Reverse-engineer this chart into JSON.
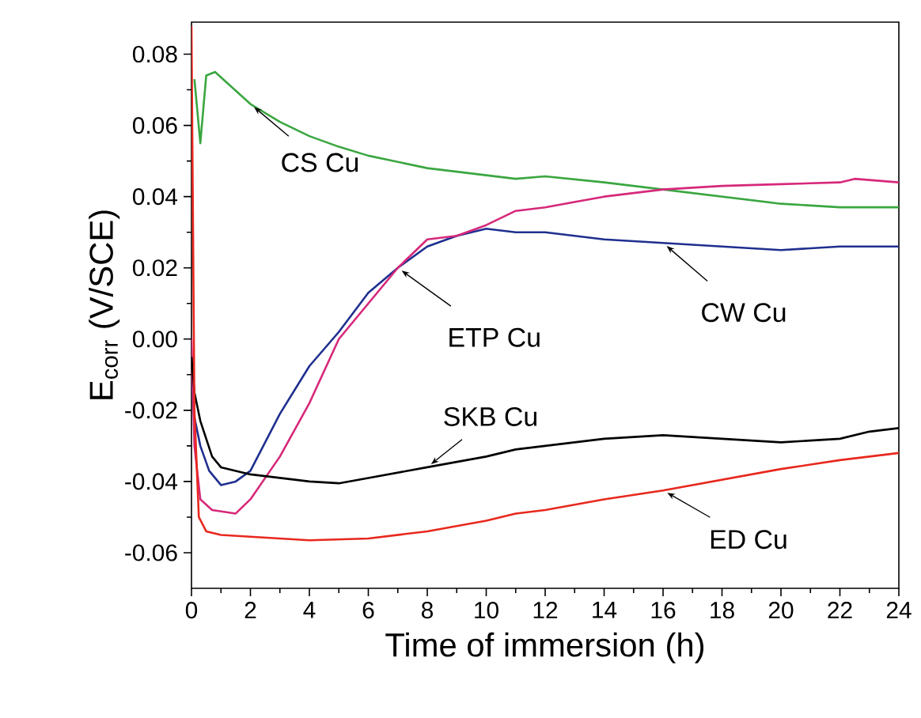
{
  "chart_data": {
    "type": "line",
    "xlabel": "Time of immersion (h)",
    "ylabel": "E$_{corr}$ (V/SCE)",
    "xlim": [
      0,
      24
    ],
    "ylim": [
      -0.07,
      0.089
    ],
    "xticks": [
      0,
      2,
      4,
      6,
      8,
      10,
      12,
      14,
      16,
      18,
      20,
      22,
      24
    ],
    "yticks": [
      -0.06,
      -0.04,
      -0.02,
      {
        "value": 0,
        "label": "0.00"
      },
      0.02,
      0.04,
      0.06,
      0.08
    ],
    "grid": false,
    "marker": "none",
    "line_style": "solid",
    "series": [
      {
        "color": "#3aa640",
        "x": [
          0.1,
          0.3,
          0.5,
          0.8,
          1.2,
          2,
          3,
          4,
          5,
          6,
          8,
          10,
          11,
          12,
          14,
          16,
          18,
          20,
          22,
          24
        ],
        "values": [
          0.073,
          0.055,
          0.074,
          0.075,
          0.072,
          0.066,
          0.061,
          0.057,
          0.054,
          0.0515,
          0.048,
          0.046,
          0.045,
          0.0457,
          0.044,
          0.042,
          0.04,
          0.038,
          0.037,
          0.037
        ]
      },
      {
        "color": "#1f2f8f",
        "x": [
          0,
          0.1,
          0.3,
          0.6,
          1,
          1.5,
          2,
          3,
          4,
          5,
          6,
          7,
          8,
          9,
          10,
          11,
          12,
          14,
          16,
          18,
          20,
          22,
          24
        ],
        "values": [
          -0.01,
          -0.022,
          -0.03,
          -0.037,
          -0.041,
          -0.04,
          -0.037,
          -0.021,
          -0.0076,
          0.002,
          0.013,
          0.02,
          0.026,
          0.029,
          0.031,
          0.03,
          0.03,
          0.028,
          0.027,
          0.026,
          0.025,
          0.026,
          0.026
        ]
      },
      {
        "color": "#d6287a",
        "x": [
          0,
          0.1,
          0.3,
          0.7,
          1.5,
          2,
          3,
          4,
          5,
          6,
          7,
          8,
          9,
          10,
          11,
          12,
          14,
          16,
          18,
          20,
          22,
          22.5,
          24
        ],
        "values": [
          0.0,
          -0.03,
          -0.045,
          -0.048,
          -0.049,
          -0.045,
          -0.033,
          -0.018,
          0.0,
          0.01,
          0.02,
          0.028,
          0.029,
          0.032,
          0.036,
          0.037,
          0.04,
          0.042,
          0.043,
          0.0435,
          0.044,
          0.045,
          0.044
        ]
      },
      {
        "color": "#000000",
        "x": [
          0,
          0.1,
          0.3,
          0.7,
          1,
          2,
          3,
          4,
          5,
          6,
          8,
          10,
          11,
          12,
          14,
          16,
          18,
          20,
          22,
          23,
          24
        ],
        "values": [
          -0.005,
          -0.015,
          -0.023,
          -0.033,
          -0.036,
          -0.038,
          -0.039,
          -0.04,
          -0.0405,
          -0.039,
          -0.036,
          -0.033,
          -0.031,
          -0.03,
          -0.028,
          -0.027,
          -0.028,
          -0.029,
          -0.028,
          -0.026,
          -0.025
        ]
      },
      {
        "color": "#e8281e",
        "x": [
          0,
          0.1,
          0.25,
          0.5,
          1,
          2,
          4,
          6,
          8,
          10,
          11,
          12,
          14,
          16,
          18,
          20,
          22,
          24
        ],
        "values": [
          0.088,
          -0.02,
          -0.05,
          -0.054,
          -0.055,
          -0.0555,
          -0.0565,
          -0.056,
          -0.054,
          -0.051,
          -0.049,
          -0.048,
          -0.045,
          -0.0425,
          -0.0395,
          -0.0365,
          -0.034,
          -0.032
        ]
      }
    ],
    "annotations": [
      {
        "text": "CS Cu",
        "x": 2,
        "y": 0.066
      },
      {
        "text": "ETP Cu",
        "x": 7,
        "y": 0.02
      },
      {
        "text": "CW Cu",
        "x": 16,
        "y": 0.027
      },
      {
        "text": "SKB Cu",
        "x": 8,
        "y": -0.036
      },
      {
        "text": "ED Cu",
        "x": 16,
        "y": -0.0425
      }
    ]
  }
}
